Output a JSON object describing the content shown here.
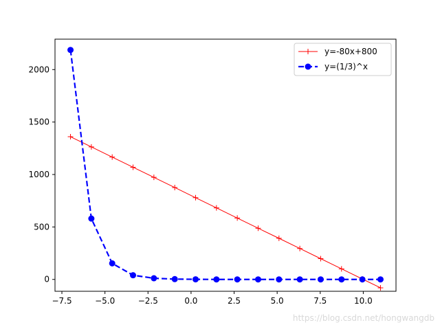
{
  "chart_data": {
    "type": "line",
    "x_ticks": [
      "−7.5",
      "−5.0",
      "−2.5",
      "0.0",
      "2.5",
      "5.0",
      "7.5",
      "10.0"
    ],
    "x_tick_values": [
      -7.5,
      -5.0,
      -2.5,
      0.0,
      2.5,
      5.0,
      7.5,
      10.0
    ],
    "y_ticks": [
      "0",
      "500",
      "1000",
      "1500",
      "2000"
    ],
    "y_tick_values": [
      0,
      500,
      1000,
      1500,
      2000
    ],
    "xlim": [
      -7.9,
      11.9
    ],
    "ylim": [
      -113,
      2290
    ],
    "grid": false,
    "legend_position": "top-right",
    "series": [
      {
        "name": "y=-80x+800",
        "color": "#ff0000",
        "marker": "plus",
        "linestyle": "solid",
        "x": [
          -7.0,
          -5.789,
          -4.579,
          -3.368,
          -2.158,
          -0.947,
          0.263,
          1.474,
          2.684,
          3.895,
          5.105,
          6.316,
          7.526,
          8.737,
          9.947,
          11.0
        ],
        "y": [
          1360,
          1263,
          1166,
          1069,
          973,
          876,
          779,
          682,
          585,
          488,
          392,
          295,
          198,
          101,
          4,
          -80
        ]
      },
      {
        "name": "y=(1/3)^x",
        "color": "#0000ff",
        "marker": "circle",
        "linestyle": "dashed",
        "x": [
          -7.0,
          -5.789,
          -4.579,
          -3.368,
          -2.158,
          -0.947,
          0.263,
          1.474,
          2.684,
          3.895,
          5.105,
          6.316,
          7.526,
          8.737,
          9.947,
          11.0
        ],
        "y": [
          2187,
          580,
          153,
          40,
          11,
          3,
          1,
          0,
          0,
          0,
          0,
          0,
          0,
          0,
          0,
          0
        ]
      }
    ]
  },
  "watermark": "https://blog.csdn.net/hongwangdb"
}
